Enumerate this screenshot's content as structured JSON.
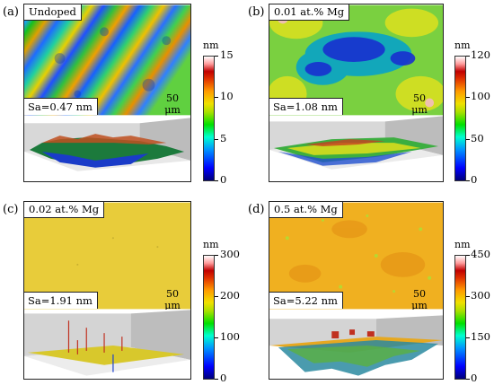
{
  "panels": [
    {
      "letter": "(a)",
      "sample": "Undoped",
      "sa": "Sa=0.47 nm",
      "scale": "50 μm",
      "unit": "nm",
      "ticks": [
        "15",
        "10",
        "5",
        "0"
      ]
    },
    {
      "letter": "(b)",
      "sample": "0.01 at.% Mg",
      "sa": "Sa=1.08 nm",
      "scale": "50 μm",
      "unit": "nm",
      "ticks": [
        "120",
        "100",
        "50",
        "0"
      ]
    },
    {
      "letter": "(c)",
      "sample": "0.02 at.% Mg",
      "sa": "Sa=1.91 nm",
      "scale": "50 μm",
      "unit": "nm",
      "ticks": [
        "300",
        "200",
        "100",
        "0"
      ]
    },
    {
      "letter": "(d)",
      "sample": "0.5 at.% Mg",
      "sa": "Sa=5.22 nm",
      "scale": "50 μm",
      "unit": "nm",
      "ticks": [
        "450",
        "300",
        "150",
        "0"
      ]
    }
  ]
}
